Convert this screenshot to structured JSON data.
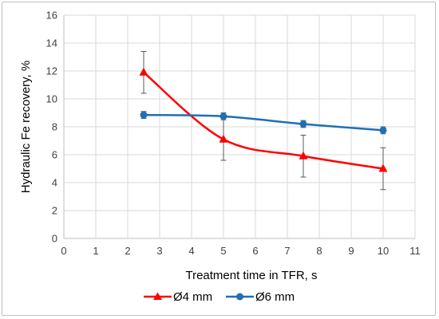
{
  "chart_data": {
    "type": "line",
    "xlabel": "Treatment time in TFR, s",
    "ylabel": "Hydraulic Fe recovery, %",
    "xlim": [
      0,
      11
    ],
    "ylim": [
      0,
      16
    ],
    "xticks": [
      "0",
      "1",
      "2",
      "3",
      "4",
      "5",
      "6",
      "7",
      "8",
      "9",
      "10",
      "11"
    ],
    "yticks": [
      "0",
      "2",
      "4",
      "6",
      "8",
      "10",
      "12",
      "14",
      "16"
    ],
    "grid": true,
    "legend_position": "bottom",
    "series": [
      {
        "name": "Ø4 mm",
        "color": "#ff0000",
        "marker": "triangle",
        "x": [
          2.5,
          5,
          7.5,
          10
        ],
        "y": [
          11.9,
          7.1,
          5.9,
          5.0
        ],
        "error": [
          1.5,
          1.5,
          1.5,
          1.5
        ]
      },
      {
        "name": "Ø6 mm",
        "color": "#1f6fb5",
        "marker": "circle",
        "x": [
          2.5,
          5,
          7.5,
          10
        ],
        "y": [
          8.85,
          8.75,
          8.2,
          7.75
        ],
        "error": [
          0.25,
          0.25,
          0.25,
          0.25
        ]
      }
    ]
  }
}
